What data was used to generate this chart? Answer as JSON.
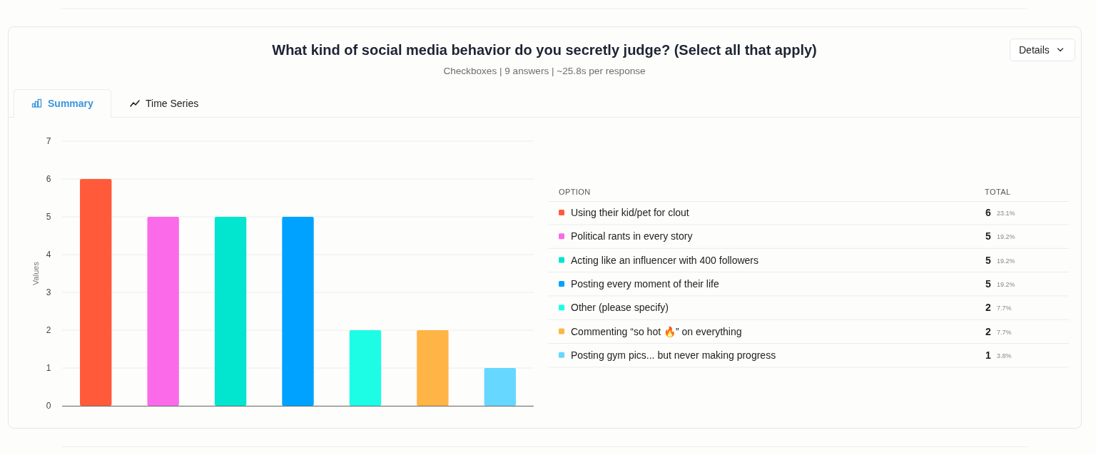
{
  "chart_data": {
    "type": "bar",
    "title": "What kind of social media behavior do you secretly judge? (Select all that apply)",
    "subtitle": "Checkboxes | 9 answers | ~25.8s per response",
    "ylabel": "Values",
    "categories": [
      null,
      null,
      null,
      null,
      null,
      null,
      null
    ],
    "series": [
      {
        "name": "Using their kid/pet for clout",
        "color": "#ff5b3a",
        "values": [
          6,
          null,
          null,
          null,
          null,
          null,
          null
        ]
      },
      {
        "name": "Political rants in every story",
        "color": "#fa6ae9",
        "values": [
          null,
          5,
          null,
          null,
          null,
          null,
          null
        ]
      },
      {
        "name": "Acting like an influencer with 400 followers",
        "color": "#02e5cf",
        "values": [
          null,
          null,
          5,
          null,
          null,
          null,
          null
        ]
      },
      {
        "name": "Posting every moment of their life",
        "color": "#00a2ff",
        "values": [
          null,
          null,
          null,
          5,
          null,
          null,
          null
        ]
      },
      {
        "name": "Other (please specify)",
        "color": "#1dfde5",
        "values": [
          null,
          null,
          null,
          null,
          2,
          null,
          null
        ]
      },
      {
        "name": "Commenting “so hot 🔥” on everything",
        "color": "#ffb446",
        "values": [
          null,
          null,
          null,
          null,
          null,
          2,
          null
        ]
      },
      {
        "name": "Posting gym pics... but never making progress",
        "color": "#66d8ff",
        "values": [
          null,
          null,
          null,
          null,
          null,
          null,
          1
        ]
      }
    ],
    "stacked": true,
    "ylim": [
      0,
      7
    ],
    "yticks": [
      0,
      1,
      2,
      3,
      4,
      5,
      6,
      7
    ],
    "grid": "y",
    "tick_labels": "y",
    "legend": "right",
    "legend_title": "OPTION",
    "annotations": [
      "TOTAL",
      "Details",
      "Summary",
      "Time Series",
      "6",
      "23.1%",
      "5",
      "19.2%",
      "5",
      "19.2%",
      "5",
      "19.2%",
      "2",
      "7.7%",
      "2",
      "7.7%",
      "1",
      "3.8%"
    ]
  }
}
